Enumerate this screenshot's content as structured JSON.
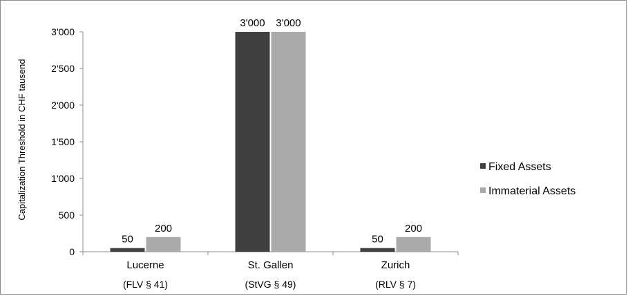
{
  "chart_data": {
    "type": "bar",
    "ylabel": "Capitalization Threshold in CHF tausend",
    "xlabel": "",
    "title": "",
    "ylim": [
      0,
      3000
    ],
    "y_ticks": [
      "0",
      "500",
      "1'000",
      "1'500",
      "2'000",
      "2'500",
      "3'000"
    ],
    "categories": [
      "Lucerne",
      "St. Gallen",
      "Zurich"
    ],
    "subcategories": [
      "(FLV § 41)",
      "(StVG § 49)",
      "(RLV § 7)"
    ],
    "series": [
      {
        "name": "Fixed Assets",
        "values": [
          50,
          3000,
          50
        ],
        "labels": [
          "50",
          "3'000",
          "50"
        ],
        "color": "#404040"
      },
      {
        "name": "Immaterial Assets",
        "values": [
          200,
          3000,
          200
        ],
        "labels": [
          "200",
          "3'000",
          "200"
        ],
        "color": "#aaaaaa"
      }
    ],
    "legend_position": "right",
    "grid": false
  }
}
